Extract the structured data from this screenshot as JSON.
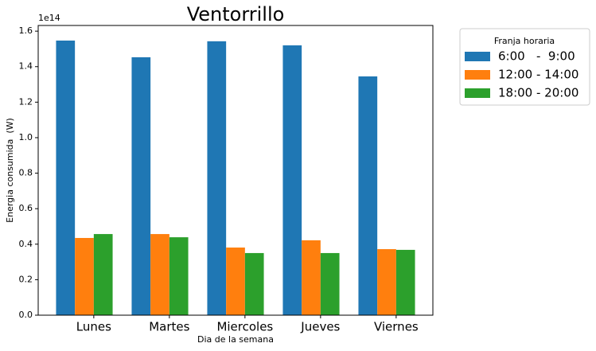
{
  "chart_data": {
    "type": "bar",
    "title": "Ventorrillo",
    "x_label": "Dia de la semana",
    "y_label": "Energia consumida  (W)",
    "y_offset_label": "1e14",
    "categories": [
      "Lunes",
      "Martes",
      "Miercoles",
      "Jueves",
      "Viernes"
    ],
    "series": [
      {
        "name": "6:00   -  9:00",
        "color": "#1f77b4",
        "values": [
          1.547,
          1.453,
          1.543,
          1.52,
          1.345
        ]
      },
      {
        "name": "12:00 - 14:00",
        "color": "#ff7f0e",
        "values": [
          0.435,
          0.457,
          0.381,
          0.422,
          0.372
        ]
      },
      {
        "name": "18:00 - 20:00",
        "color": "#2ca02c",
        "values": [
          0.457,
          0.439,
          0.35,
          0.35,
          0.368
        ]
      }
    ],
    "legend_title": "Franja horaria",
    "legend_position": "outside-right",
    "ylim": [
      0,
      1.632
    ],
    "yticks": [
      {
        "value": 0,
        "label": "0.0"
      },
      0.2,
      0.4,
      0.6,
      0.8,
      {
        "value": 1,
        "label": "1.0"
      },
      1.2,
      1.4,
      1.6
    ]
  }
}
